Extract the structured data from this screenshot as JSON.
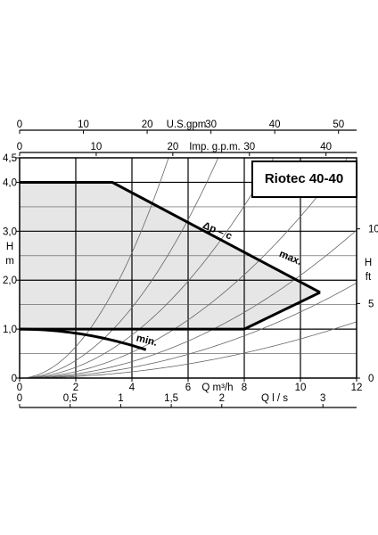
{
  "chart_data": {
    "type": "line",
    "title": "Riotec 40-40",
    "x_axis": {
      "label": "Q m³/h",
      "range": [
        0,
        12
      ],
      "ticks": [
        "0",
        "2",
        "4",
        "6",
        "8",
        "10",
        "12"
      ],
      "tick_values": [
        0,
        2,
        4,
        6,
        8,
        10,
        12
      ]
    },
    "y_left": {
      "label": "H m",
      "label_lines": [
        "H",
        "m"
      ],
      "range": [
        0,
        4.5
      ],
      "ticks": [
        "0",
        "1,0",
        "2,0",
        "3,0",
        "4,0",
        "4,5"
      ],
      "tick_values": [
        0,
        1.0,
        2.0,
        3.0,
        4.0,
        4.5
      ]
    },
    "y_right": {
      "label": "H ft",
      "label_lines": [
        "H",
        "ft"
      ],
      "ticks": [
        "0",
        "5",
        "10"
      ],
      "tick_values": [
        0,
        5,
        10
      ],
      "factor": 3.28084
    },
    "secondary_x": [
      {
        "label": "U.S.gpm",
        "factor": 4.4029,
        "ticks": [
          "0",
          "10",
          "20",
          "30",
          "40",
          "50"
        ],
        "tick_values": [
          0,
          10,
          20,
          30,
          40,
          50
        ],
        "position": "top"
      },
      {
        "label": "Imp. g.p.m.",
        "factor": 3.6662,
        "ticks": [
          "0",
          "10",
          "20",
          "30",
          "40"
        ],
        "tick_values": [
          0,
          10,
          20,
          30,
          40
        ],
        "position": "top"
      },
      {
        "label": "Q l / s",
        "factor": 0.27778,
        "ticks": [
          "0",
          "0,5",
          "1",
          "1,5",
          "2",
          "3"
        ],
        "tick_values": [
          0,
          0.5,
          1,
          1.5,
          2,
          3
        ],
        "position": "bottom"
      }
    ],
    "series": [
      {
        "name": "Δp – c",
        "points": [
          [
            0,
            4.0
          ],
          [
            3.3,
            4.0
          ],
          [
            10.7,
            1.75
          ]
        ]
      },
      {
        "name": "max.",
        "points": [
          [
            10.7,
            1.75
          ],
          [
            8.0,
            1.0
          ]
        ]
      },
      {
        "name": "min.",
        "points": [
          [
            0,
            1.0
          ],
          [
            1.5,
            0.95
          ],
          [
            3.0,
            0.83
          ],
          [
            4.5,
            0.58
          ]
        ]
      }
    ],
    "shaded_region": [
      [
        0,
        4.0
      ],
      [
        3.3,
        4.0
      ],
      [
        10.7,
        1.75
      ],
      [
        8.0,
        1.0
      ],
      [
        0,
        1.0
      ]
    ],
    "system_curves_k": [
      0.16,
      0.09,
      0.055,
      0.033,
      0.021,
      0.0135,
      0.008
    ],
    "grid": true
  }
}
